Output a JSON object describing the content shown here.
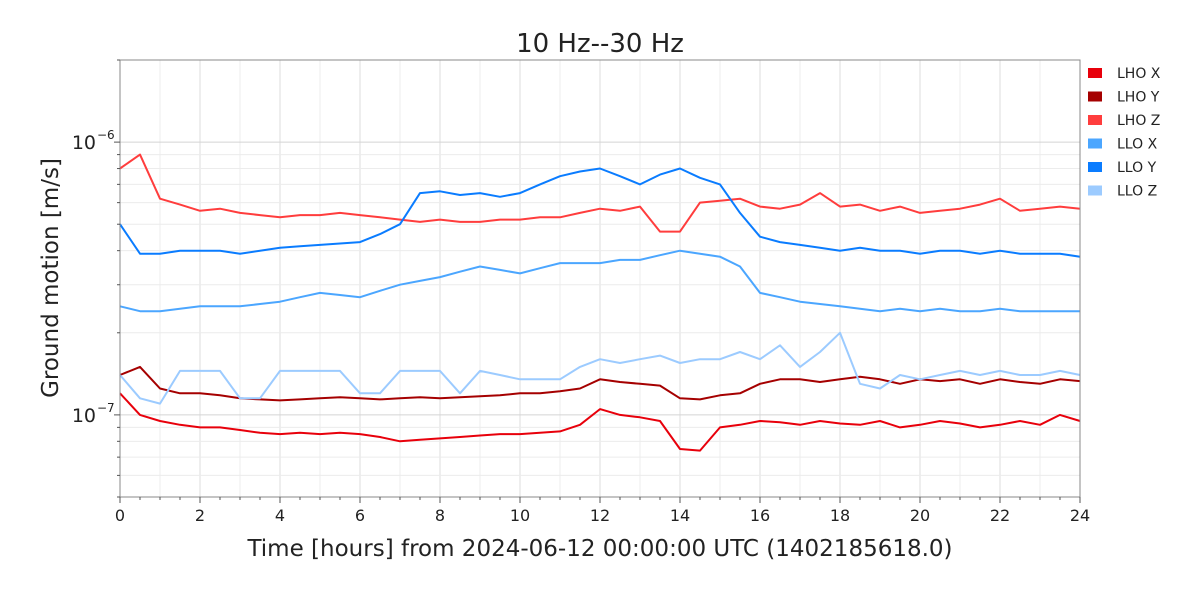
{
  "chart_data": {
    "type": "line",
    "title": "10 Hz--30 Hz",
    "xlabel": "Time [hours] from 2024-06-12 00:00:00 UTC (1402185618.0)",
    "ylabel": "Ground motion [m/s]",
    "xlim": [
      0,
      24
    ],
    "ylim": [
      5e-08,
      2e-06
    ],
    "yscale": "log",
    "grid": true,
    "legend_position": "outside-right",
    "x_ticks": [
      0,
      2,
      4,
      6,
      8,
      10,
      12,
      14,
      16,
      18,
      20,
      22,
      24
    ],
    "x_tick_labels": [
      "0",
      "2",
      "4",
      "6",
      "8",
      "10",
      "12",
      "14",
      "16",
      "18",
      "20",
      "22",
      "24"
    ],
    "y_tick_labels": [
      {
        "base": "10",
        "exp": "−6",
        "value": 1e-06
      },
      {
        "base": "10",
        "exp": "−7",
        "value": 1e-07
      }
    ],
    "x_step_hours": 0.5,
    "series": [
      {
        "name": "LHO X",
        "color": "#e8000b",
        "values": [
          1.2e-07,
          1e-07,
          9.5e-08,
          9.2e-08,
          9e-08,
          9e-08,
          8.8e-08,
          8.6e-08,
          8.5e-08,
          8.6e-08,
          8.5e-08,
          8.6e-08,
          8.5e-08,
          8.3e-08,
          8e-08,
          8.1e-08,
          8.2e-08,
          8.3e-08,
          8.4e-08,
          8.5e-08,
          8.5e-08,
          8.6e-08,
          8.7e-08,
          9.2e-08,
          1.05e-07,
          1e-07,
          9.8e-08,
          9.5e-08,
          7.5e-08,
          7.4e-08,
          9e-08,
          9.2e-08,
          9.5e-08,
          9.4e-08,
          9.2e-08,
          9.5e-08,
          9.3e-08,
          9.2e-08,
          9.5e-08,
          9e-08,
          9.2e-08,
          9.5e-08,
          9.3e-08,
          9e-08,
          9.2e-08,
          9.5e-08,
          9.2e-08,
          1e-07,
          9.5e-08
        ]
      },
      {
        "name": "LHO Y",
        "color": "#a50000",
        "values": [
          1.4e-07,
          1.5e-07,
          1.25e-07,
          1.2e-07,
          1.2e-07,
          1.18e-07,
          1.15e-07,
          1.14e-07,
          1.13e-07,
          1.14e-07,
          1.15e-07,
          1.16e-07,
          1.15e-07,
          1.14e-07,
          1.15e-07,
          1.16e-07,
          1.15e-07,
          1.16e-07,
          1.17e-07,
          1.18e-07,
          1.2e-07,
          1.2e-07,
          1.22e-07,
          1.25e-07,
          1.35e-07,
          1.32e-07,
          1.3e-07,
          1.28e-07,
          1.15e-07,
          1.14e-07,
          1.18e-07,
          1.2e-07,
          1.3e-07,
          1.35e-07,
          1.35e-07,
          1.32e-07,
          1.35e-07,
          1.38e-07,
          1.35e-07,
          1.3e-07,
          1.35e-07,
          1.33e-07,
          1.35e-07,
          1.3e-07,
          1.35e-07,
          1.32e-07,
          1.3e-07,
          1.35e-07,
          1.33e-07
        ]
      },
      {
        "name": "LHO Z",
        "color": "#ff3d3d",
        "values": [
          8e-07,
          9e-07,
          6.2e-07,
          5.9e-07,
          5.6e-07,
          5.7e-07,
          5.5e-07,
          5.4e-07,
          5.3e-07,
          5.4e-07,
          5.4e-07,
          5.5e-07,
          5.4e-07,
          5.3e-07,
          5.2e-07,
          5.1e-07,
          5.2e-07,
          5.1e-07,
          5.1e-07,
          5.2e-07,
          5.2e-07,
          5.3e-07,
          5.3e-07,
          5.5e-07,
          5.7e-07,
          5.6e-07,
          5.8e-07,
          4.7e-07,
          4.7e-07,
          6e-07,
          6.1e-07,
          6.2e-07,
          5.8e-07,
          5.7e-07,
          5.9e-07,
          6.5e-07,
          5.8e-07,
          5.9e-07,
          5.6e-07,
          5.8e-07,
          5.5e-07,
          5.6e-07,
          5.7e-07,
          5.9e-07,
          6.2e-07,
          5.6e-07,
          5.7e-07,
          5.8e-07,
          5.7e-07
        ]
      },
      {
        "name": "LLO X",
        "color": "#4ba6ff",
        "values": [
          2.5e-07,
          2.4e-07,
          2.4e-07,
          2.45e-07,
          2.5e-07,
          2.5e-07,
          2.5e-07,
          2.55e-07,
          2.6e-07,
          2.7e-07,
          2.8e-07,
          2.75e-07,
          2.7e-07,
          2.85e-07,
          3e-07,
          3.1e-07,
          3.2e-07,
          3.35e-07,
          3.5e-07,
          3.4e-07,
          3.3e-07,
          3.45e-07,
          3.6e-07,
          3.6e-07,
          3.6e-07,
          3.7e-07,
          3.7e-07,
          3.85e-07,
          4e-07,
          3.9e-07,
          3.8e-07,
          3.5e-07,
          2.8e-07,
          2.7e-07,
          2.6e-07,
          2.55e-07,
          2.5e-07,
          2.45e-07,
          2.4e-07,
          2.45e-07,
          2.4e-07,
          2.45e-07,
          2.4e-07,
          2.4e-07,
          2.45e-07,
          2.4e-07,
          2.4e-07,
          2.4e-07,
          2.4e-07
        ]
      },
      {
        "name": "LLO Y",
        "color": "#0a7cff",
        "values": [
          5e-07,
          3.9e-07,
          3.9e-07,
          4e-07,
          4e-07,
          4e-07,
          3.9e-07,
          4e-07,
          4.1e-07,
          4.15e-07,
          4.2e-07,
          4.25e-07,
          4.3e-07,
          4.6e-07,
          5e-07,
          6.5e-07,
          6.6e-07,
          6.4e-07,
          6.5e-07,
          6.3e-07,
          6.5e-07,
          7e-07,
          7.5e-07,
          7.8e-07,
          8e-07,
          7.5e-07,
          7e-07,
          7.6e-07,
          8e-07,
          7.4e-07,
          7e-07,
          5.5e-07,
          4.5e-07,
          4.3e-07,
          4.2e-07,
          4.1e-07,
          4e-07,
          4.1e-07,
          4e-07,
          4e-07,
          3.9e-07,
          4e-07,
          4e-07,
          3.9e-07,
          4e-07,
          3.9e-07,
          3.9e-07,
          3.9e-07,
          3.8e-07
        ]
      },
      {
        "name": "LLO Z",
        "color": "#9ccbff",
        "values": [
          1.4e-07,
          1.15e-07,
          1.1e-07,
          1.45e-07,
          1.45e-07,
          1.45e-07,
          1.15e-07,
          1.15e-07,
          1.45e-07,
          1.45e-07,
          1.45e-07,
          1.45e-07,
          1.2e-07,
          1.2e-07,
          1.45e-07,
          1.45e-07,
          1.45e-07,
          1.2e-07,
          1.45e-07,
          1.4e-07,
          1.35e-07,
          1.35e-07,
          1.35e-07,
          1.5e-07,
          1.6e-07,
          1.55e-07,
          1.6e-07,
          1.65e-07,
          1.55e-07,
          1.6e-07,
          1.6e-07,
          1.7e-07,
          1.6e-07,
          1.8e-07,
          1.5e-07,
          1.7e-07,
          2e-07,
          1.3e-07,
          1.25e-07,
          1.4e-07,
          1.35e-07,
          1.4e-07,
          1.45e-07,
          1.4e-07,
          1.45e-07,
          1.4e-07,
          1.4e-07,
          1.45e-07,
          1.4e-07
        ]
      }
    ]
  }
}
